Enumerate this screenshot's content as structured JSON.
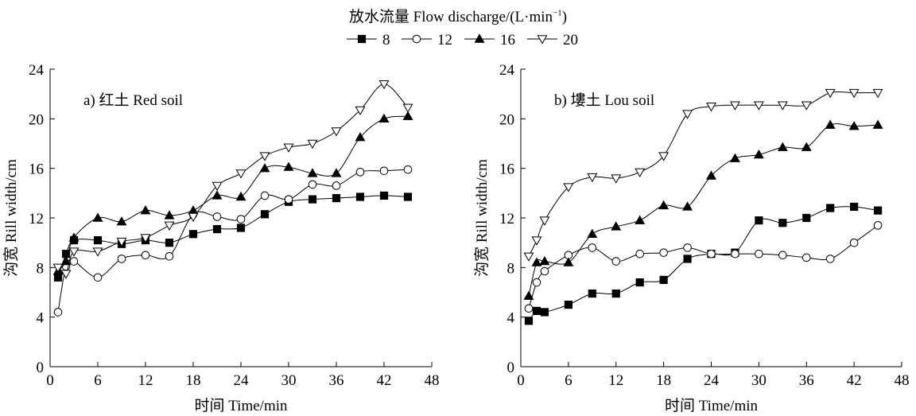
{
  "figure": {
    "legend_title": "放水流量 Flow discharge/(L·min",
    "legend_title_sup": "−1",
    "legend_title_close": ")"
  },
  "series_styles": [
    {
      "marker": "square",
      "fill": "#000000"
    },
    {
      "marker": "circle",
      "fill": "#ffffff"
    },
    {
      "marker": "triangle-up",
      "fill": "#000000"
    },
    {
      "marker": "triangle-down",
      "fill": "#ffffff"
    }
  ],
  "chart_data": [
    {
      "type": "line",
      "title": "a) 红土 Red soil",
      "xlabel": "时间 Time/min",
      "ylabel": "沟宽 Rill width/cm",
      "xlim": [
        0,
        48
      ],
      "ylim": [
        0,
        24
      ],
      "xticks": [
        0,
        6,
        12,
        18,
        24,
        30,
        36,
        42,
        48
      ],
      "yticks": [
        0,
        4,
        8,
        12,
        16,
        20,
        24
      ],
      "grid": false,
      "legend": "top-center",
      "series": [
        {
          "name": "8",
          "x": [
            1,
            2,
            3,
            6,
            9,
            12,
            15,
            18,
            21,
            24,
            27,
            30,
            33,
            36,
            39,
            42,
            45
          ],
          "values": [
            7.2,
            9.1,
            10.2,
            10.2,
            9.9,
            10.2,
            10.0,
            10.7,
            11.1,
            11.2,
            12.3,
            13.3,
            13.5,
            13.6,
            13.7,
            13.8,
            13.7
          ]
        },
        {
          "name": "12",
          "x": [
            1,
            2,
            3,
            6,
            9,
            12,
            15,
            18,
            21,
            24,
            27,
            30,
            33,
            36,
            39,
            42,
            45
          ],
          "values": [
            4.4,
            8.1,
            8.5,
            7.2,
            8.7,
            9.0,
            8.9,
            12.3,
            12.1,
            11.9,
            13.8,
            13.5,
            14.7,
            14.6,
            15.7,
            15.8,
            15.9
          ]
        },
        {
          "name": "16",
          "x": [
            1,
            2,
            3,
            6,
            9,
            12,
            15,
            18,
            21,
            24,
            27,
            30,
            33,
            36,
            39,
            42,
            45
          ],
          "values": [
            7.7,
            8.5,
            10.4,
            12.0,
            11.7,
            12.6,
            12.2,
            12.6,
            13.8,
            13.7,
            16.0,
            16.1,
            15.6,
            15.6,
            18.5,
            20.0,
            20.2
          ]
        },
        {
          "name": "20",
          "x": [
            1,
            2,
            3,
            6,
            9,
            12,
            15,
            18,
            21,
            24,
            27,
            30,
            33,
            36,
            39,
            42,
            45
          ],
          "values": [
            8.0,
            7.5,
            9.3,
            9.3,
            10.1,
            10.4,
            11.4,
            12.1,
            14.6,
            15.6,
            17.0,
            17.7,
            18.0,
            19.0,
            20.7,
            22.8,
            20.9
          ]
        }
      ]
    },
    {
      "type": "line",
      "title": "b) 塿土 Lou soil",
      "xlabel": "时间 Time/min",
      "ylabel": "沟宽 Rill width/cm",
      "xlim": [
        0,
        48
      ],
      "ylim": [
        0,
        24
      ],
      "xticks": [
        0,
        6,
        12,
        18,
        24,
        30,
        36,
        42,
        48
      ],
      "yticks": [
        0,
        4,
        8,
        12,
        16,
        20,
        24
      ],
      "grid": false,
      "legend": "top-center",
      "series": [
        {
          "name": "8",
          "x": [
            1,
            2,
            3,
            6,
            9,
            12,
            15,
            18,
            21,
            24,
            27,
            30,
            33,
            36,
            39,
            42,
            45
          ],
          "values": [
            3.7,
            4.5,
            4.4,
            5.0,
            5.9,
            5.9,
            6.8,
            7.0,
            8.7,
            9.1,
            9.2,
            11.8,
            11.6,
            12.0,
            12.8,
            12.9,
            12.6
          ]
        },
        {
          "name": "12",
          "x": [
            1,
            2,
            3,
            6,
            9,
            12,
            15,
            18,
            21,
            24,
            27,
            30,
            33,
            36,
            39,
            42,
            45
          ],
          "values": [
            4.7,
            6.8,
            7.7,
            9.0,
            9.6,
            8.5,
            9.1,
            9.2,
            9.6,
            9.1,
            9.1,
            9.1,
            9.0,
            8.8,
            8.7,
            10.0,
            11.4
          ]
        },
        {
          "name": "16",
          "x": [
            1,
            2,
            3,
            6,
            9,
            12,
            15,
            18,
            21,
            24,
            27,
            30,
            33,
            36,
            39,
            42,
            45
          ],
          "values": [
            5.7,
            8.4,
            8.5,
            8.4,
            10.7,
            11.3,
            11.8,
            13.0,
            12.9,
            15.4,
            16.8,
            17.1,
            17.7,
            17.7,
            19.5,
            19.4,
            19.5
          ]
        },
        {
          "name": "20",
          "x": [
            1,
            2,
            3,
            6,
            9,
            12,
            15,
            18,
            21,
            24,
            27,
            30,
            33,
            36,
            39,
            42,
            45
          ],
          "values": [
            8.9,
            10.2,
            11.8,
            14.5,
            15.3,
            15.2,
            15.7,
            17.0,
            20.4,
            21.0,
            21.1,
            21.1,
            21.1,
            21.1,
            22.1,
            22.1,
            22.1
          ]
        }
      ]
    }
  ]
}
